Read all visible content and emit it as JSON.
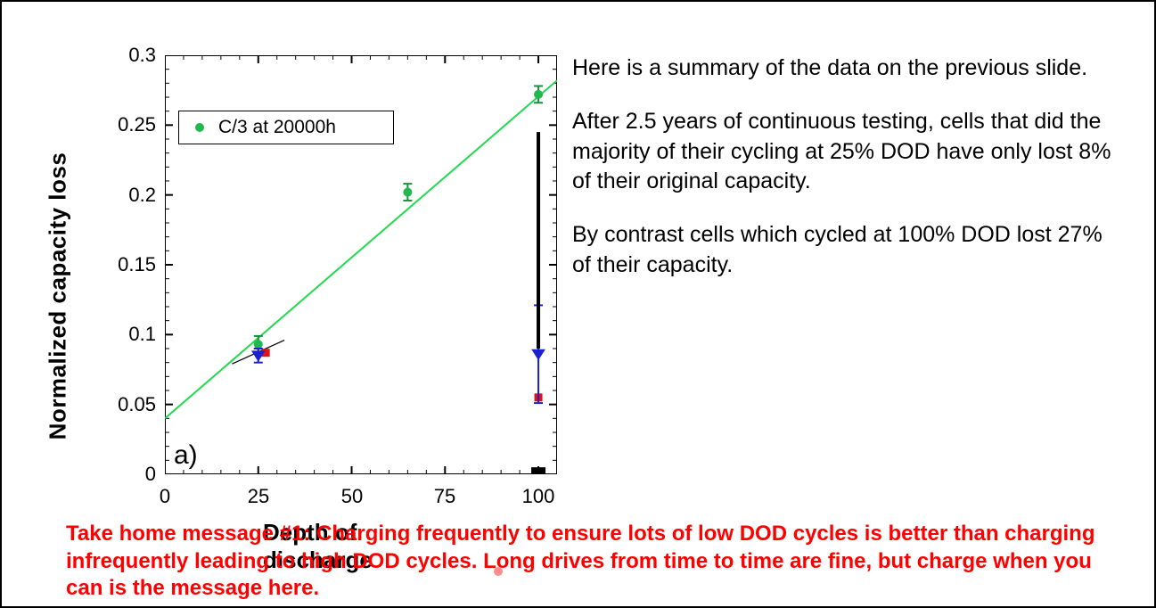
{
  "chart": {
    "type": "scatter-with-fit",
    "xlabel": "Depth of discharge",
    "ylabel": "Normalized capacity loss",
    "panel_label": "a)",
    "xlim": [
      0,
      105
    ],
    "ylim": [
      0,
      0.3
    ],
    "xticks": [
      0,
      25,
      50,
      75,
      100
    ],
    "xtick_labels": [
      "0",
      "25",
      "50",
      "75",
      "100"
    ],
    "yticks": [
      0,
      0.05,
      0.1,
      0.15,
      0.2,
      0.25,
      0.3
    ],
    "ytick_labels": [
      "0",
      "0.05",
      "0.1",
      "0.15",
      "0.2",
      "0.25",
      "0.3"
    ],
    "tick_fontsize": 22,
    "label_fontsize": 26,
    "label_fontweight": "bold",
    "background_color": "#ffffff",
    "axis_color": "#000000",
    "axis_linewidth": 2,
    "tick_length_major": 9,
    "tick_length_minor": 5,
    "legend": {
      "label": "C/3 at 20000h",
      "marker_color": "#21b84e",
      "border_color": "#000000",
      "fontsize": 21
    },
    "fit_line": {
      "color": "#21d94e",
      "width": 2,
      "x0": 0,
      "y0": 0.04,
      "x1": 105,
      "y1": 0.282
    },
    "series_green": {
      "marker": "circle",
      "color": "#21b84e",
      "size": 10,
      "errorbar_color": "#1a8f3d",
      "errorbar_width": 2,
      "points": [
        {
          "x": 25,
          "y": 0.093,
          "ey": 0.006
        },
        {
          "x": 65,
          "y": 0.202,
          "ey": 0.006
        },
        {
          "x": 100,
          "y": 0.272,
          "ey": 0.006
        }
      ]
    },
    "series_blue": {
      "marker": "triangle-down",
      "color": "#1921d1",
      "size": 11,
      "errorbar_color": "#1921d1",
      "errorbar_width": 2,
      "points": [
        {
          "x": 25,
          "y": 0.085,
          "ey": 0.005
        },
        {
          "x": 100,
          "y": 0.086,
          "ey": 0.035
        }
      ]
    },
    "series_red": {
      "marker": "square",
      "color": "#e01414",
      "size": 9,
      "points": [
        {
          "x": 27,
          "y": 0.087
        },
        {
          "x": 100,
          "y": 0.055
        }
      ]
    },
    "accent_line": {
      "color": "#000000",
      "width": 1.2,
      "points": [
        {
          "x": 18,
          "y": 0.079
        },
        {
          "x": 32,
          "y": 0.096
        }
      ]
    },
    "right_scale_marks": {
      "color": "#000000",
      "x": 100,
      "heavy_band": {
        "y0": 0.0,
        "y1": 0.005,
        "width": 8
      },
      "thick_segment": {
        "y0": 0.09,
        "y1": 0.245,
        "width": 4
      }
    }
  },
  "paragraphs": {
    "p1": "Here is a summary of the data on the previous slide.",
    "p2": "After 2.5 years of continuous testing, cells that did the majority of their cycling at 25% DOD have only lost 8% of their original capacity.",
    "p3": "By contrast cells which cycled at 100% DOD lost 27% of their capacity."
  },
  "takehome": {
    "text": "Take home message #1: Charging frequently to ensure lots of low DOD cycles is better than charging infrequently leading to high DOD cycles.   Long drives from time to time are fine, but charge when you can is the message here.",
    "color": "#ff0000",
    "fontsize": 24,
    "fontweight": "bold"
  }
}
